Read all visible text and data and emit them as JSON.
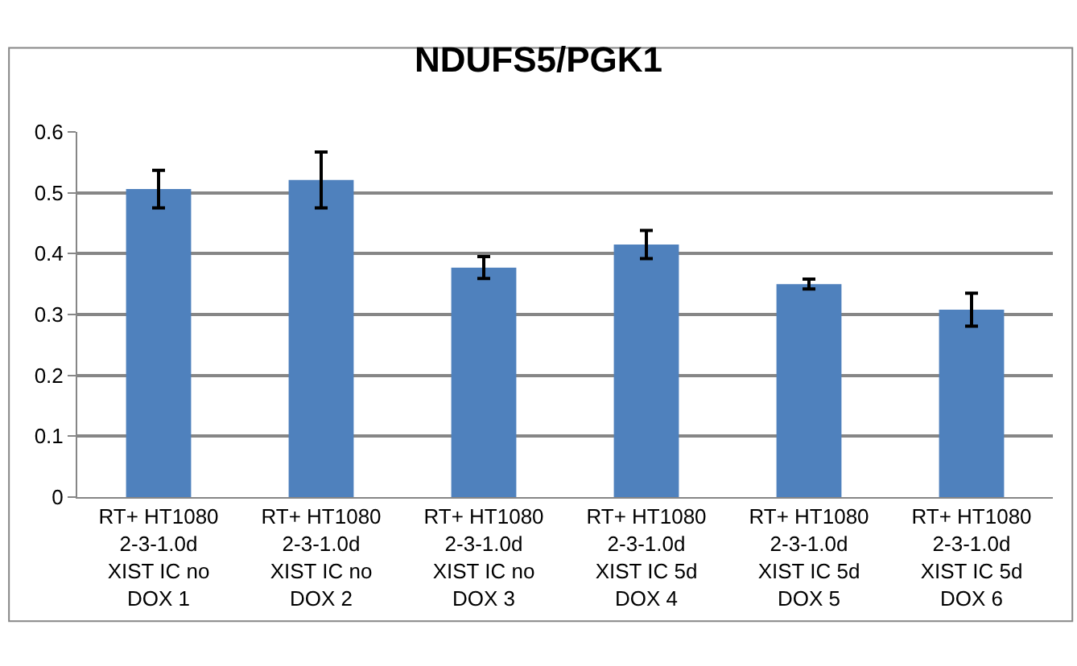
{
  "chart_data": {
    "type": "bar",
    "title": "NDUFS5/PGK1",
    "categories": [
      "RT+ HT1080 2-3-1.0d XIST IC no DOX 1",
      "RT+ HT1080 2-3-1.0d XIST IC no DOX 2",
      "RT+ HT1080 2-3-1.0d XIST IC no DOX 3",
      "RT+ HT1080 2-3-1.0d XIST IC 5d DOX 4",
      "RT+ HT1080 2-3-1.0d XIST IC 5d DOX 5",
      "RT+ HT1080 2-3-1.0d XIST IC 5d DOX 6"
    ],
    "values": [
      0.506,
      0.521,
      0.377,
      0.415,
      0.35,
      0.308
    ],
    "errors": [
      0.031,
      0.046,
      0.018,
      0.023,
      0.008,
      0.027
    ],
    "color": "#4f81bd",
    "ylim": [
      0,
      0.6
    ],
    "yticks": [
      0,
      0.1,
      0.2,
      0.3,
      0.4,
      0.5,
      0.6
    ],
    "grid": "y",
    "legend": false
  }
}
